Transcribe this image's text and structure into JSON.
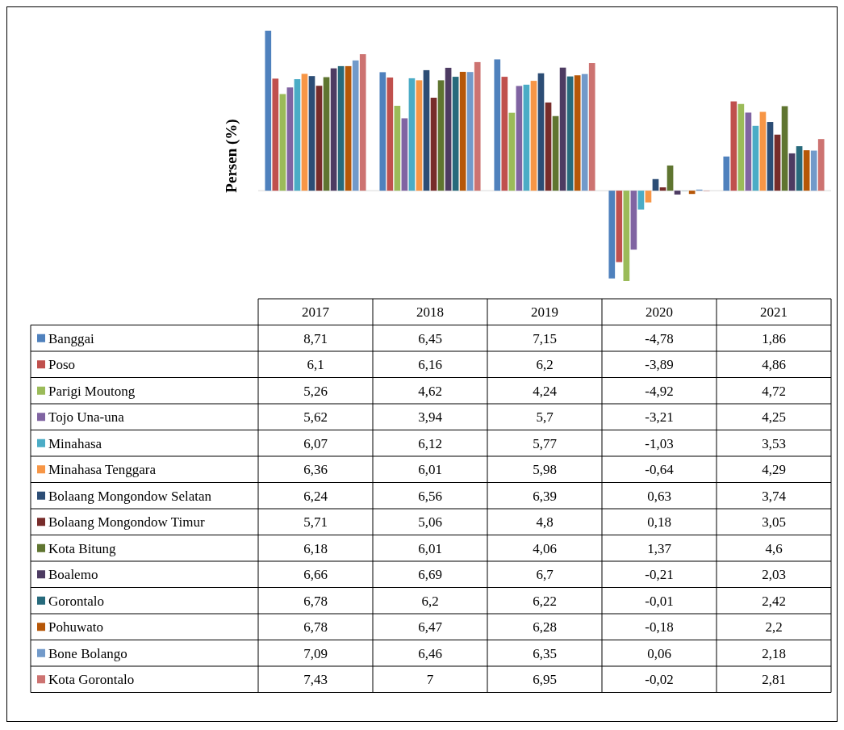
{
  "chart_data": {
    "type": "bar",
    "ylabel": "Persen (%)",
    "categories": [
      "2017",
      "2018",
      "2019",
      "2020",
      "2021"
    ],
    "legend": "bottom",
    "grid": false,
    "series": [
      {
        "name": "Banggai",
        "color": "#4f81bd",
        "values": [
          8.71,
          6.45,
          7.15,
          -4.78,
          1.86
        ],
        "value_labels": [
          "8,71",
          "6,45",
          "7,15",
          "-4,78",
          "1,86"
        ]
      },
      {
        "name": "Poso",
        "color": "#c0504d",
        "values": [
          6.1,
          6.16,
          6.2,
          -3.89,
          4.86
        ],
        "value_labels": [
          "6,1",
          "6,16",
          "6,2",
          "-3,89",
          "4,86"
        ]
      },
      {
        "name": "Parigi Moutong",
        "color": "#9bbb59",
        "values": [
          5.26,
          4.62,
          4.24,
          -4.92,
          4.72
        ],
        "value_labels": [
          "5,26",
          "4,62",
          "4,24",
          "-4,92",
          "4,72"
        ]
      },
      {
        "name": "Tojo Una-una",
        "color": "#8064a2",
        "values": [
          5.62,
          3.94,
          5.7,
          -3.21,
          4.25
        ],
        "value_labels": [
          "5,62",
          "3,94",
          "5,7",
          "-3,21",
          "4,25"
        ]
      },
      {
        "name": "Minahasa",
        "color": "#4bacc6",
        "values": [
          6.07,
          6.12,
          5.77,
          -1.03,
          3.53
        ],
        "value_labels": [
          "6,07",
          "6,12",
          "5,77",
          "-1,03",
          "3,53"
        ]
      },
      {
        "name": "Minahasa Tenggara",
        "color": "#f79646",
        "values": [
          6.36,
          6.01,
          5.98,
          -0.64,
          4.29
        ],
        "value_labels": [
          "6,36",
          "6,01",
          "5,98",
          "-0,64",
          "4,29"
        ]
      },
      {
        "name": "Bolaang Mongondow Selatan",
        "color": "#2c4d75",
        "values": [
          6.24,
          6.56,
          6.39,
          0.63,
          3.74
        ],
        "value_labels": [
          "6,24",
          "6,56",
          "6,39",
          "0,63",
          "3,74"
        ]
      },
      {
        "name": "Bolaang Mongondow Timur",
        "color": "#772c2a",
        "values": [
          5.71,
          5.06,
          4.8,
          0.18,
          3.05
        ],
        "value_labels": [
          "5,71",
          "5,06",
          "4,8",
          "0,18",
          "3,05"
        ]
      },
      {
        "name": "Kota Bitung",
        "color": "#5f7530",
        "values": [
          6.18,
          6.01,
          4.06,
          1.37,
          4.6
        ],
        "value_labels": [
          "6,18",
          "6,01",
          "4,06",
          "1,37",
          "4,6"
        ]
      },
      {
        "name": "Boalemo",
        "color": "#4d3b62",
        "values": [
          6.66,
          6.69,
          6.7,
          -0.21,
          2.03
        ],
        "value_labels": [
          "6,66",
          "6,69",
          "6,7",
          "-0,21",
          "2,03"
        ]
      },
      {
        "name": "Gorontalo",
        "color": "#276a7c",
        "values": [
          6.78,
          6.2,
          6.22,
          -0.01,
          2.42
        ],
        "value_labels": [
          "6,78",
          "6,2",
          "6,22",
          "-0,01",
          "2,42"
        ]
      },
      {
        "name": "Pohuwato",
        "color": "#b65708",
        "values": [
          6.78,
          6.47,
          6.28,
          -0.18,
          2.2
        ],
        "value_labels": [
          "6,78",
          "6,47",
          "6,28",
          "-0,18",
          "2,2"
        ]
      },
      {
        "name": "Bone Bolango",
        "color": "#729aca",
        "values": [
          7.09,
          6.46,
          6.35,
          0.06,
          2.18
        ],
        "value_labels": [
          "7,09",
          "6,46",
          "6,35",
          "0,06",
          "2,18"
        ]
      },
      {
        "name": "Kota Gorontalo",
        "color": "#cd7371",
        "values": [
          7.43,
          7,
          6.95,
          -0.02,
          2.81
        ],
        "value_labels": [
          "7,43",
          "7",
          "6,95",
          "-0,02",
          "2,81"
        ]
      }
    ]
  }
}
